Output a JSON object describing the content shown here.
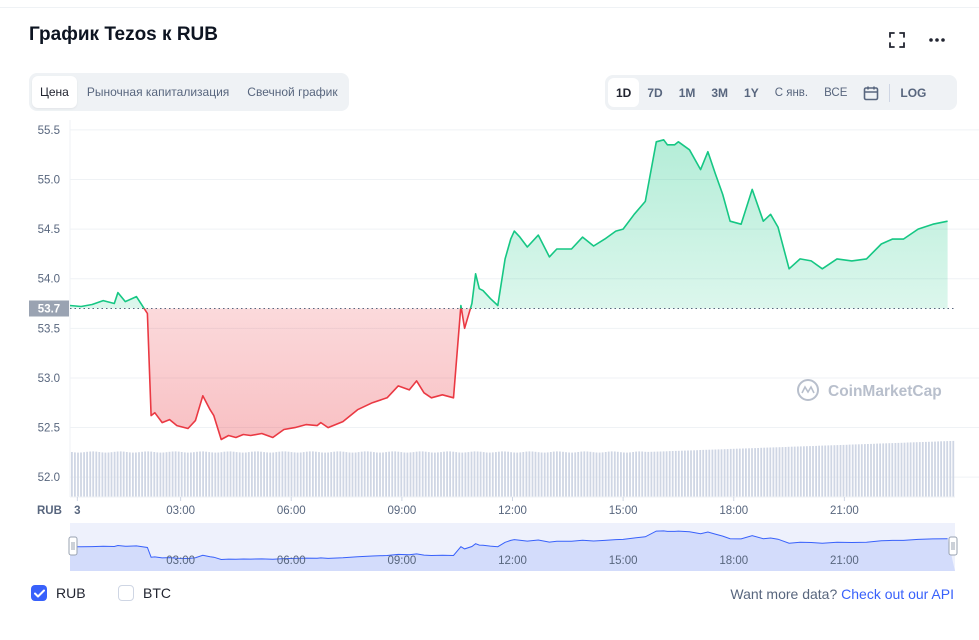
{
  "header": {
    "title": "График Tezos к RUB"
  },
  "view_tabs": [
    {
      "label": "Цена",
      "active": true
    },
    {
      "label": "Рыночная капитализация",
      "active": false
    },
    {
      "label": "Свечной график",
      "active": false
    }
  ],
  "range_tabs": [
    {
      "label": "1D",
      "active": true,
      "thin": false
    },
    {
      "label": "7D",
      "active": false,
      "thin": false
    },
    {
      "label": "1M",
      "active": false,
      "thin": false
    },
    {
      "label": "3M",
      "active": false,
      "thin": false
    },
    {
      "label": "1Y",
      "active": false,
      "thin": false
    },
    {
      "label": "С янв.",
      "active": false,
      "thin": true
    },
    {
      "label": "ВСЕ",
      "active": false,
      "thin": true
    }
  ],
  "log_label": "LOG",
  "watermark": "CoinMarketCap",
  "chart_data": {
    "type": "area",
    "currency_label": "RUB",
    "baseline": 53.7,
    "baseline_label": "53.7",
    "ylim": [
      51.8,
      55.6
    ],
    "y_ticks": [
      "55.5",
      "55.0",
      "54.5",
      "54.0",
      "53.5",
      "53.0",
      "52.5",
      "52.0"
    ],
    "y_tick_values": [
      55.5,
      55.0,
      54.5,
      54.0,
      53.5,
      53.0,
      52.5,
      52.0
    ],
    "x_range_hours": [
      0,
      24
    ],
    "x_ticks": [
      "3",
      "03:00",
      "06:00",
      "09:00",
      "12:00",
      "15:00",
      "18:00",
      "21:00"
    ],
    "x_tick_hours": [
      0.2,
      3,
      6,
      9,
      12,
      15,
      18,
      21
    ],
    "grid": true,
    "colors": {
      "up": "#16c784",
      "down": "#ea3943",
      "baseline": "#9aa3b2",
      "volume": "#cfd6e4",
      "navigator": "#3861fb"
    },
    "series": [
      {
        "hours": [
          0.0,
          0.3,
          0.6,
          0.9,
          1.2,
          1.3,
          1.5,
          1.8,
          2.1,
          2.2,
          2.3,
          2.5,
          2.7,
          2.9,
          3.2,
          3.4,
          3.6,
          3.8,
          3.9,
          4.1,
          4.3,
          4.5,
          4.7,
          4.9,
          5.2,
          5.5,
          5.8,
          6.1,
          6.4,
          6.7,
          6.8,
          7.0,
          7.4,
          7.8,
          8.2,
          8.6,
          8.9,
          9.2,
          9.4,
          9.6,
          9.8,
          10.1,
          10.4,
          10.6,
          10.7,
          10.9,
          11.0,
          11.1,
          11.2,
          11.4,
          11.6,
          11.8,
          11.95,
          12.05,
          12.2,
          12.4,
          12.7,
          13.0,
          13.2,
          13.6,
          13.9,
          14.2,
          14.5,
          14.8,
          15.0,
          15.3,
          15.6,
          15.9,
          16.1,
          16.2,
          16.4,
          16.5,
          16.8,
          17.1,
          17.3,
          17.5,
          17.7,
          17.9,
          18.2,
          18.5,
          18.8,
          19.0,
          19.2,
          19.5,
          19.8,
          20.1,
          20.4,
          20.8,
          21.2,
          21.6,
          22.0,
          22.3,
          22.6,
          23.0,
          23.4,
          23.8
        ],
        "values": [
          53.73,
          53.72,
          53.74,
          53.78,
          53.75,
          53.86,
          53.77,
          53.82,
          53.65,
          52.62,
          52.65,
          52.55,
          52.58,
          52.52,
          52.49,
          52.57,
          52.82,
          52.68,
          52.62,
          52.38,
          52.42,
          52.4,
          52.43,
          52.42,
          52.44,
          52.4,
          52.48,
          52.5,
          52.53,
          52.52,
          52.55,
          52.5,
          52.56,
          52.68,
          52.75,
          52.8,
          52.92,
          52.88,
          52.97,
          52.85,
          52.8,
          52.83,
          52.8,
          53.73,
          53.5,
          53.75,
          54.05,
          53.9,
          53.88,
          53.8,
          53.73,
          54.2,
          54.4,
          54.48,
          54.42,
          54.32,
          54.44,
          54.22,
          54.3,
          54.3,
          54.42,
          54.33,
          54.4,
          54.48,
          54.5,
          54.65,
          54.78,
          55.38,
          55.4,
          55.35,
          55.35,
          55.38,
          55.3,
          55.1,
          55.28,
          55.06,
          54.85,
          54.58,
          54.55,
          54.9,
          54.58,
          54.65,
          54.52,
          54.1,
          54.2,
          54.18,
          54.1,
          54.2,
          54.18,
          54.2,
          54.35,
          54.4,
          54.4,
          54.5,
          54.55,
          54.58
        ]
      }
    ]
  },
  "legend": {
    "rub_label": "RUB",
    "btc_label": "BTC"
  },
  "footer": {
    "api_text": "Want more data?",
    "api_link": "Check out our API"
  }
}
